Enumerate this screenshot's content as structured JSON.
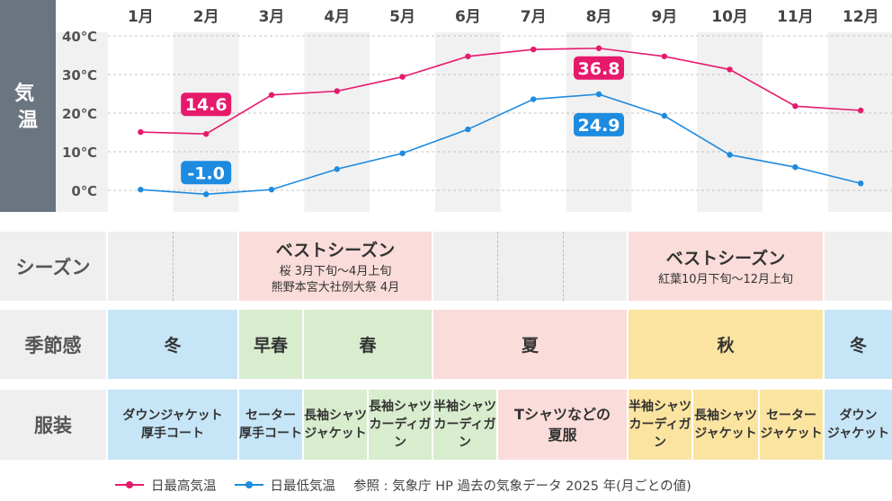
{
  "chart_data": {
    "type": "line",
    "ylabel": "気温",
    "ylim": [
      -5,
      40
    ],
    "y_ticks": [
      "0℃",
      "10℃",
      "20℃",
      "30℃",
      "40℃"
    ],
    "y_tick_values": [
      0,
      10,
      20,
      30,
      40
    ],
    "categories": [
      "1月",
      "2月",
      "3月",
      "4月",
      "5月",
      "6月",
      "7月",
      "8月",
      "9月",
      "10月",
      "11月",
      "12月"
    ],
    "series": [
      {
        "name": "日最高気温",
        "color": "#e6196b",
        "values": [
          15.1,
          14.6,
          24.7,
          25.7,
          29.4,
          34.7,
          36.5,
          36.8,
          34.7,
          31.3,
          21.8,
          20.7
        ]
      },
      {
        "name": "日最低気温",
        "color": "#1d8be0",
        "values": [
          0.2,
          -1.0,
          0.2,
          5.5,
          9.6,
          15.8,
          23.6,
          24.9,
          19.3,
          9.2,
          6.0,
          1.8
        ]
      }
    ],
    "callouts": [
      {
        "series": 0,
        "index": 1,
        "label": "14.6"
      },
      {
        "series": 0,
        "index": 7,
        "label": "36.8"
      },
      {
        "series": 1,
        "index": 1,
        "label": "-1.0"
      },
      {
        "series": 1,
        "index": 7,
        "label": "24.9"
      }
    ],
    "grid": true,
    "legend_position": "bottom"
  },
  "colors": {
    "high": "#e6196b",
    "low": "#1d8be0",
    "sidebar": "#6b7580",
    "grey": "#efefef",
    "pink": "#fadcda",
    "blue": "#c6e5f6",
    "green": "#d8ecce",
    "yellow": "#fbe4a0"
  },
  "rows": {
    "season_label": "シーズン",
    "feel_label": "季節感",
    "clothes_label": "服装"
  },
  "seasons": [
    {
      "main": "ベストシーズン",
      "sub1": "桜 3月下旬～4月上旬",
      "sub2": "熊野本宮大社例大祭 4月"
    },
    {
      "main": "ベストシーズン",
      "sub1": "紅葉10月下旬～12月上旬"
    }
  ],
  "feelings": [
    "冬",
    "早春",
    "春",
    "夏",
    "秋",
    "冬"
  ],
  "clothes": [
    {
      "l1": "ダウンジャケット",
      "l2": "厚手コート"
    },
    {
      "l1": "セーター",
      "l2": "厚手コート"
    },
    {
      "l1": "長袖シャツ",
      "l2": "ジャケット"
    },
    {
      "l1": "長袖シャツ",
      "l2": "カーディガン"
    },
    {
      "l1": "半袖シャツ",
      "l2": "カーディガン"
    },
    {
      "l1": "Tシャツなどの",
      "l2": "夏服"
    },
    {
      "l1": "半袖シャツ",
      "l2": "カーディガン"
    },
    {
      "l1": "長袖シャツ",
      "l2": "ジャケット"
    },
    {
      "l1": "セーター",
      "l2": "ジャケット"
    },
    {
      "l1": "ダウン",
      "l2": "ジャケット"
    }
  ],
  "legend": {
    "high_label": "日最高気温",
    "low_label": "日最低気温",
    "source": "参照 : 気象庁 HP 過去の気象データ 2025 年(月ごとの値)"
  }
}
